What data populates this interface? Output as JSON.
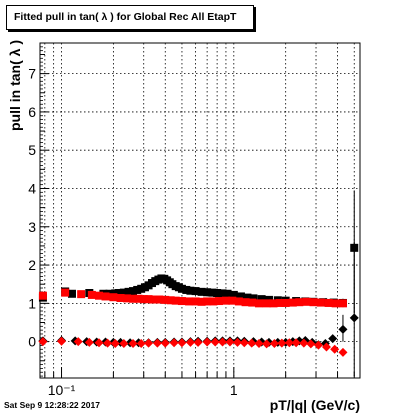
{
  "title": "Fitted pull in tan( λ ) for Global Rec All EtapT",
  "timestamp": "Sat Sep  9 12:28:22 2017",
  "chart_data": {
    "type": "scatter",
    "xlabel": "pT/|q| (GeV/c)",
    "ylabel": "pull in tan( λ )",
    "xscale": "log",
    "xlim": [
      0.075,
      5.4
    ],
    "ylim": [
      -0.95,
      7.8
    ],
    "x_tick_labels": [
      {
        "value": 0.1,
        "label": "10⁻¹"
      },
      {
        "value": 1,
        "label": "1"
      }
    ],
    "y_ticks": [
      0,
      1,
      2,
      3,
      4,
      5,
      6,
      7
    ],
    "grid": true,
    "colors": {
      "black": "#000000",
      "red": "#ff0000"
    },
    "series": [
      {
        "marker": "square",
        "color": "#000000",
        "points": [
          [
            0.078,
            1.15
          ],
          [
            0.105,
            1.31
          ],
          [
            0.115,
            1.25
          ],
          [
            0.145,
            1.27
          ],
          [
            0.175,
            1.25
          ],
          [
            0.19,
            1.25
          ],
          [
            0.205,
            1.26
          ],
          [
            0.215,
            1.27
          ],
          [
            0.23,
            1.28
          ],
          [
            0.245,
            1.3
          ],
          [
            0.26,
            1.32
          ],
          [
            0.275,
            1.35
          ],
          [
            0.29,
            1.38
          ],
          [
            0.305,
            1.42
          ],
          [
            0.32,
            1.47
          ],
          [
            0.335,
            1.53
          ],
          [
            0.35,
            1.58
          ],
          [
            0.365,
            1.62
          ],
          [
            0.38,
            1.65
          ],
          [
            0.395,
            1.64
          ],
          [
            0.41,
            1.6
          ],
          [
            0.425,
            1.55
          ],
          [
            0.44,
            1.5
          ],
          [
            0.46,
            1.45
          ],
          [
            0.48,
            1.42
          ],
          [
            0.5,
            1.38
          ],
          [
            0.53,
            1.35
          ],
          [
            0.56,
            1.33
          ],
          [
            0.6,
            1.32
          ],
          [
            0.65,
            1.3
          ],
          [
            0.7,
            1.29
          ],
          [
            0.75,
            1.28
          ],
          [
            0.8,
            1.27
          ],
          [
            0.86,
            1.26
          ],
          [
            0.92,
            1.25
          ],
          [
            1.0,
            1.22
          ],
          [
            1.1,
            1.18
          ],
          [
            1.2,
            1.15
          ],
          [
            1.3,
            1.13
          ],
          [
            1.45,
            1.11
          ],
          [
            1.6,
            1.09
          ],
          [
            1.8,
            1.08
          ],
          [
            2.0,
            1.07
          ],
          [
            2.3,
            1.06
          ],
          [
            2.6,
            1.05
          ],
          [
            2.9,
            1.04
          ],
          [
            3.3,
            1.03
          ],
          [
            3.8,
            1.02
          ],
          [
            4.3,
            1.01
          ],
          [
            5.0,
            2.45
          ]
        ]
      },
      {
        "marker": "square",
        "color": "#ff0000",
        "points": [
          [
            0.078,
            1.2
          ],
          [
            0.105,
            1.28
          ],
          [
            0.13,
            1.24
          ],
          [
            0.15,
            1.22
          ],
          [
            0.165,
            1.2
          ],
          [
            0.18,
            1.18
          ],
          [
            0.2,
            1.16
          ],
          [
            0.22,
            1.14
          ],
          [
            0.24,
            1.13
          ],
          [
            0.26,
            1.12
          ],
          [
            0.28,
            1.12
          ],
          [
            0.3,
            1.11
          ],
          [
            0.32,
            1.11
          ],
          [
            0.34,
            1.1
          ],
          [
            0.37,
            1.1
          ],
          [
            0.4,
            1.09
          ],
          [
            0.43,
            1.08
          ],
          [
            0.46,
            1.07
          ],
          [
            0.5,
            1.06
          ],
          [
            0.55,
            1.05
          ],
          [
            0.6,
            1.05
          ],
          [
            0.65,
            1.04
          ],
          [
            0.7,
            1.05
          ],
          [
            0.76,
            1.05
          ],
          [
            0.82,
            1.06
          ],
          [
            0.9,
            1.07
          ],
          [
            0.98,
            1.07
          ],
          [
            1.07,
            1.05
          ],
          [
            1.17,
            1.03
          ],
          [
            1.28,
            1.02
          ],
          [
            1.4,
            1.0
          ],
          [
            1.55,
            1.0
          ],
          [
            1.7,
            1.0
          ],
          [
            1.85,
            1.01
          ],
          [
            2.0,
            1.01
          ],
          [
            2.2,
            1.02
          ],
          [
            2.4,
            1.03
          ],
          [
            2.65,
            1.04
          ],
          [
            2.9,
            1.03
          ],
          [
            3.2,
            1.02
          ],
          [
            3.55,
            1.01
          ],
          [
            3.9,
            1.0
          ],
          [
            4.3,
            1.0
          ]
        ]
      },
      {
        "marker": "diamond",
        "color": "#000000",
        "points": [
          [
            0.078,
            0.02
          ],
          [
            0.1,
            0.03
          ],
          [
            0.12,
            0.02
          ],
          [
            0.14,
            0.0
          ],
          [
            0.16,
            -0.01
          ],
          [
            0.18,
            -0.01
          ],
          [
            0.2,
            -0.02
          ],
          [
            0.22,
            -0.02
          ],
          [
            0.25,
            -0.03
          ],
          [
            0.28,
            -0.03
          ],
          [
            0.32,
            -0.03
          ],
          [
            0.36,
            -0.02
          ],
          [
            0.4,
            -0.02
          ],
          [
            0.45,
            -0.01
          ],
          [
            0.5,
            -0.01
          ],
          [
            0.56,
            0.0
          ],
          [
            0.62,
            0.01
          ],
          [
            0.7,
            0.01
          ],
          [
            0.78,
            0.02
          ],
          [
            0.86,
            0.02
          ],
          [
            0.95,
            0.02
          ],
          [
            1.05,
            0.02
          ],
          [
            1.15,
            0.01
          ],
          [
            1.3,
            0.0
          ],
          [
            1.45,
            -0.01
          ],
          [
            1.6,
            -0.02
          ],
          [
            1.8,
            -0.02
          ],
          [
            2.0,
            -0.02
          ],
          [
            2.2,
            0.0
          ],
          [
            2.4,
            0.02
          ],
          [
            2.6,
            0.03
          ],
          [
            2.85,
            -0.02
          ],
          [
            3.1,
            -0.08
          ],
          [
            3.4,
            -0.05
          ],
          [
            3.75,
            0.08
          ],
          [
            4.3,
            0.32
          ],
          [
            5.0,
            0.62
          ]
        ]
      },
      {
        "marker": "diamond",
        "color": "#ff0000",
        "points": [
          [
            0.078,
            0.0
          ],
          [
            0.1,
            0.01
          ],
          [
            0.125,
            0.0
          ],
          [
            0.145,
            -0.02
          ],
          [
            0.165,
            -0.03
          ],
          [
            0.185,
            -0.04
          ],
          [
            0.205,
            -0.05
          ],
          [
            0.23,
            -0.05
          ],
          [
            0.26,
            -0.05
          ],
          [
            0.29,
            -0.05
          ],
          [
            0.32,
            -0.04
          ],
          [
            0.36,
            -0.04
          ],
          [
            0.4,
            -0.04
          ],
          [
            0.45,
            -0.03
          ],
          [
            0.5,
            -0.03
          ],
          [
            0.56,
            -0.02
          ],
          [
            0.62,
            -0.02
          ],
          [
            0.7,
            -0.01
          ],
          [
            0.78,
            -0.01
          ],
          [
            0.86,
            -0.01
          ],
          [
            0.95,
            -0.01
          ],
          [
            1.05,
            -0.02
          ],
          [
            1.15,
            -0.03
          ],
          [
            1.27,
            -0.04
          ],
          [
            1.4,
            -0.05
          ],
          [
            1.55,
            -0.06
          ],
          [
            1.72,
            -0.05
          ],
          [
            1.9,
            -0.04
          ],
          [
            2.1,
            -0.03
          ],
          [
            2.3,
            -0.03
          ],
          [
            2.55,
            -0.04
          ],
          [
            2.8,
            -0.06
          ],
          [
            3.1,
            -0.09
          ],
          [
            3.45,
            -0.14
          ],
          [
            3.85,
            -0.2
          ],
          [
            4.3,
            -0.28
          ]
        ]
      }
    ],
    "error_bars": [
      {
        "x": 5.0,
        "y": 2.45,
        "low": 0.75,
        "high": 3.95,
        "color": "#000000"
      },
      {
        "x": 5.0,
        "y": 0.62,
        "low": -0.9,
        "high": 2.6,
        "color": "#000000"
      },
      {
        "x": 4.3,
        "y": 0.32,
        "low": 0.0,
        "high": 0.7,
        "color": "#000000"
      },
      {
        "x": 4.3,
        "y": 1.01,
        "low": 0.9,
        "high": 1.12,
        "color": "#000000"
      }
    ]
  }
}
